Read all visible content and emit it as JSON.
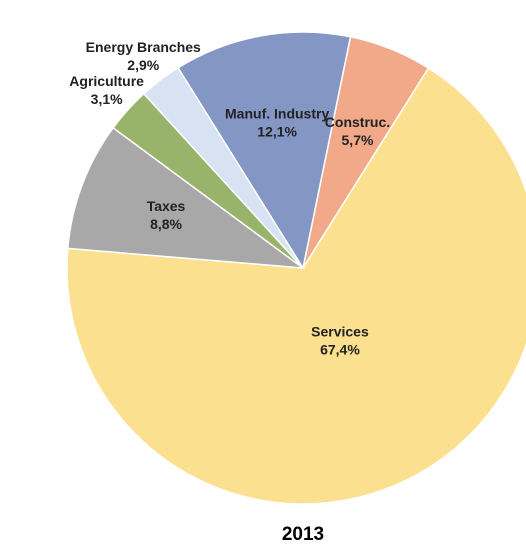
{
  "chart_data": {
    "type": "pie",
    "title": "2013",
    "categories": [
      "Construc.",
      "Services",
      "Taxes",
      "Agriculture",
      "Energy Branches",
      "Manuf. Industry"
    ],
    "values": [
      5.7,
      67.4,
      8.8,
      3.1,
      2.9,
      12.1
    ],
    "value_labels": [
      "5,7%",
      "67,4%",
      "8,8%",
      "3,1%",
      "2,9%",
      "12,1%"
    ],
    "colors": [
      "#f1a98a",
      "#fbe08f",
      "#a8a8a8",
      "#97b46a",
      "#d7e2f3",
      "#8497c4"
    ]
  }
}
